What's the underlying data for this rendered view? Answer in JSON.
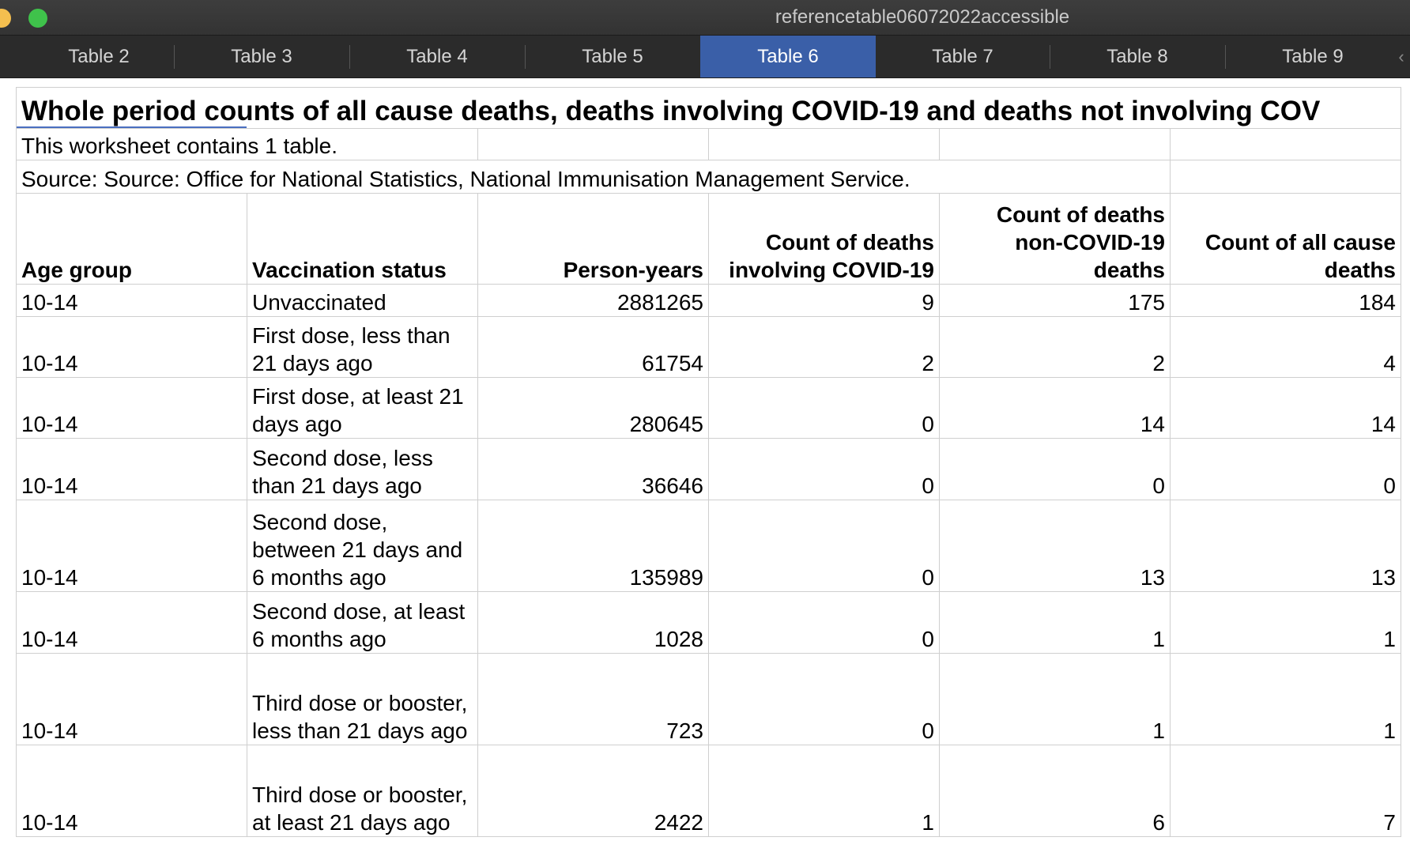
{
  "window": {
    "title": "referencetable06072022accessible"
  },
  "tabs": [
    {
      "label": "Table 2",
      "active": false
    },
    {
      "label": "Table 3",
      "active": false
    },
    {
      "label": "Table 4",
      "active": false
    },
    {
      "label": "Table 5",
      "active": false
    },
    {
      "label": "Table 6",
      "active": true
    },
    {
      "label": "Table 7",
      "active": false
    },
    {
      "label": "Table 8",
      "active": false
    },
    {
      "label": "Table 9",
      "active": false
    }
  ],
  "sheet": {
    "title": "Whole period counts of all cause deaths, deaths involving COVID-19 and deaths not involving COV",
    "note": "This worksheet contains 1 table.",
    "source": "Source: Source: Office for National Statistics, National Immunisation Management Service.",
    "headers": [
      "Age group",
      "Vaccination status",
      "Person-years",
      "Count of deaths involving COVID-19",
      "Count of deaths non-COVID-19 deaths",
      "Count of all cause deaths"
    ],
    "rows": [
      [
        "10-14",
        "Unvaccinated",
        "2881265",
        "9",
        "175",
        "184"
      ],
      [
        "10-14",
        "First dose, less than 21 days ago",
        "61754",
        "2",
        "2",
        "4"
      ],
      [
        "10-14",
        "First dose, at least 21 days ago",
        "280645",
        "0",
        "14",
        "14"
      ],
      [
        "10-14",
        "Second dose, less than 21 days ago",
        "36646",
        "0",
        "0",
        "0"
      ],
      [
        "10-14",
        "Second dose, between 21 days and 6 months ago",
        "135989",
        "0",
        "13",
        "13"
      ],
      [
        "10-14",
        "Second dose, at least 6 months ago",
        "1028",
        "0",
        "1",
        "1"
      ],
      [
        "10-14",
        "Third dose or booster, less than 21 days ago",
        "723",
        "0",
        "1",
        "1"
      ],
      [
        "10-14",
        "Third dose or booster, at least 21 days ago",
        "2422",
        "1",
        "6",
        "7"
      ]
    ]
  }
}
